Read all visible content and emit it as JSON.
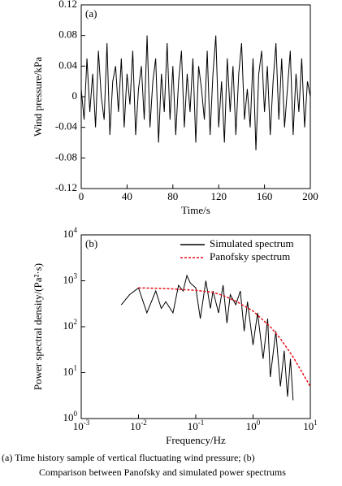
{
  "chart_data": [
    {
      "type": "line",
      "annotation": "(a)",
      "xlabel": "Time/s",
      "ylabel": "Wind pressure/kPa",
      "color": "#000000",
      "xlim": [
        0,
        200
      ],
      "xticks": [
        0,
        40,
        80,
        120,
        160,
        200
      ],
      "ylim": [
        -0.12,
        0.12
      ],
      "yticks": [
        -0.12,
        -0.08,
        -0.04,
        0,
        0.04,
        0.08,
        0.12
      ],
      "x": [
        0,
        2.5,
        5,
        7.5,
        10,
        12.5,
        15,
        17.5,
        20,
        22.5,
        25,
        27.5,
        30,
        32.5,
        35,
        37.5,
        40,
        42.5,
        45,
        47.5,
        50,
        52.5,
        55,
        57.5,
        60,
        62.5,
        65,
        67.5,
        70,
        72.5,
        75,
        77.5,
        80,
        82.5,
        85,
        87.5,
        90,
        92.5,
        95,
        97.5,
        100,
        102.5,
        105,
        107.5,
        110,
        112.5,
        115,
        117.5,
        120,
        122.5,
        125,
        127.5,
        130,
        132.5,
        135,
        137.5,
        140,
        142.5,
        145,
        147.5,
        150,
        152.5,
        155,
        157.5,
        160,
        162.5,
        165,
        167.5,
        170,
        172.5,
        175,
        177.5,
        180,
        182.5,
        185,
        187.5,
        190,
        192.5,
        195,
        197.5,
        200
      ],
      "values": [
        0.01,
        -0.03,
        0.05,
        -0.02,
        0.03,
        -0.04,
        0.06,
        0.0,
        -0.03,
        0.07,
        -0.05,
        0.02,
        0.04,
        -0.02,
        0.05,
        -0.04,
        0.03,
        -0.01,
        0.06,
        -0.05,
        0.01,
        0.04,
        -0.03,
        0.08,
        -0.04,
        0.02,
        0.05,
        -0.06,
        0.03,
        -0.02,
        0.07,
        -0.03,
        0.04,
        -0.05,
        0.02,
        0.06,
        -0.04,
        0.03,
        -0.02,
        0.05,
        -0.06,
        0.04,
        0.01,
        -0.03,
        0.06,
        -0.05,
        0.03,
        0.08,
        -0.04,
        0.02,
        -0.06,
        0.05,
        -0.02,
        0.04,
        -0.05,
        0.03,
        0.07,
        -0.03,
        0.01,
        -0.04,
        0.05,
        -0.07,
        0.03,
        0.06,
        -0.02,
        0.04,
        -0.05,
        0.02,
        0.07,
        -0.03,
        0.05,
        -0.04,
        0.01,
        0.06,
        -0.05,
        0.03,
        -0.02,
        0.05,
        -0.04,
        0.02,
        0.0
      ]
    },
    {
      "type": "line",
      "annotation": "(b)",
      "xlabel": "Frequency/Hz",
      "ylabel": "Power spectral density/(Pa²·s)",
      "xlog": true,
      "ylog": true,
      "legend": "upper right",
      "xlim": [
        0.001,
        10
      ],
      "xticks": [
        {
          "value": 0.001,
          "label": "10^-3"
        },
        {
          "value": 0.01,
          "label": "10^-2"
        },
        {
          "value": 0.1,
          "label": "10^-1"
        },
        {
          "value": 1,
          "label": "10^0"
        },
        {
          "value": 10,
          "label": "10^1"
        }
      ],
      "ylim": [
        1,
        10000
      ],
      "yticks": [
        {
          "value": 1,
          "label": "10^0"
        },
        {
          "value": 10,
          "label": "10^1"
        },
        {
          "value": 100,
          "label": "10^2"
        },
        {
          "value": 1000,
          "label": "10^3"
        },
        {
          "value": 10000,
          "label": "10^4"
        }
      ],
      "series": [
        {
          "name": "Simulated spectrum",
          "color": "#000000",
          "linestyle": "solid",
          "x": [
            0.005,
            0.007,
            0.01,
            0.014,
            0.02,
            0.025,
            0.03,
            0.04,
            0.05,
            0.06,
            0.07,
            0.08,
            0.1,
            0.12,
            0.15,
            0.18,
            0.2,
            0.25,
            0.3,
            0.35,
            0.4,
            0.5,
            0.6,
            0.7,
            0.8,
            1,
            1.2,
            1.5,
            1.8,
            2,
            2.5,
            3,
            3.5,
            4,
            4.5,
            5
          ],
          "values": [
            300,
            500,
            700,
            200,
            600,
            250,
            350,
            200,
            800,
            600,
            1300,
            900,
            700,
            150,
            1000,
            250,
            600,
            200,
            800,
            120,
            500,
            300,
            600,
            80,
            350,
            40,
            200,
            20,
            150,
            8,
            80,
            5,
            30,
            3,
            20,
            2.5
          ]
        },
        {
          "name": "Panofsky spectrum",
          "color": "#e8101a",
          "linestyle": "dashed",
          "x": [
            0.01,
            0.03,
            0.1,
            0.2,
            0.3,
            0.5,
            1,
            2,
            3,
            5,
            10
          ],
          "values": [
            700,
            680,
            620,
            560,
            480,
            360,
            220,
            100,
            55,
            22,
            5
          ]
        }
      ]
    }
  ],
  "caption": {
    "lines": [
      "(a) Time history sample of vertical fluctuating wind pressure; (b)",
      "Comparison between Panofsky and simulated power spectrums"
    ]
  }
}
